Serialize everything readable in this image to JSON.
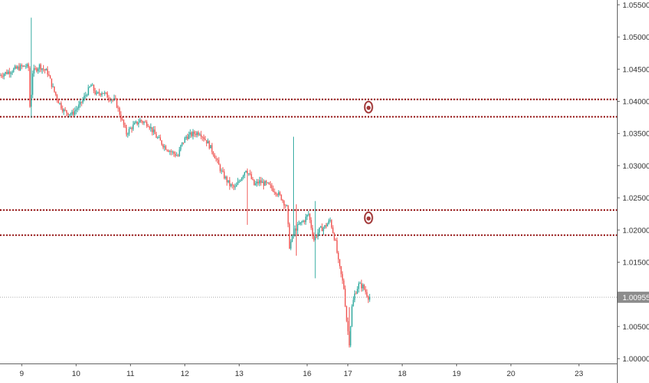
{
  "chart_data": {
    "type": "candlestick",
    "title": "",
    "xlabel": "",
    "ylabel": "",
    "ylim": [
      0.99925,
      1.05575
    ],
    "y_ticks": [
      "1.05500",
      "1.05000",
      "1.04500",
      "1.04000",
      "1.03500",
      "1.03000",
      "1.02500",
      "1.02000",
      "1.01500",
      "1.00500",
      "1.00000"
    ],
    "x_ticks": [
      {
        "label": "9",
        "x": 9.0
      },
      {
        "label": "10",
        "x": 10.0
      },
      {
        "label": "11",
        "x": 11.0
      },
      {
        "label": "12",
        "x": 12.0
      },
      {
        "label": "13",
        "x": 13.0
      },
      {
        "label": "16",
        "x": 14.25
      },
      {
        "label": "17",
        "x": 15.0
      },
      {
        "label": "18",
        "x": 16.0
      },
      {
        "label": "19",
        "x": 17.0
      },
      {
        "label": "20",
        "x": 18.0
      },
      {
        "label": "23",
        "x": 19.25
      }
    ],
    "xlim": [
      8.6,
      19.95
    ],
    "last_price": "1.00955",
    "horizontal_levels": [
      1.0403,
      1.0376,
      1.0231,
      1.0192
    ],
    "markers": [
      {
        "x": 15.38,
        "y": 1.0391,
        "icon": "target-circle-icon"
      },
      {
        "x": 15.38,
        "y": 1.0219,
        "icon": "target-circle-icon"
      }
    ],
    "colors": {
      "up": "#26a69a",
      "down": "#ef5350",
      "level_line": "#8b0000",
      "marker": "#a33b3b",
      "axis": "#555555",
      "price_tag_bg": "#8c8c8c",
      "last_price_line": "#999999"
    },
    "anchors": [
      [
        8.6,
        1.044
      ],
      [
        8.75,
        1.0445
      ],
      [
        8.9,
        1.045
      ],
      [
        9.0,
        1.0453
      ],
      [
        9.1,
        1.0455
      ],
      [
        9.15,
        1.0452
      ],
      [
        9.18,
        1.038
      ],
      [
        9.22,
        1.0445
      ],
      [
        9.35,
        1.0455
      ],
      [
        9.5,
        1.0445
      ],
      [
        9.6,
        1.042
      ],
      [
        9.7,
        1.04
      ],
      [
        9.8,
        1.0385
      ],
      [
        9.95,
        1.038
      ],
      [
        10.1,
        1.0395
      ],
      [
        10.2,
        1.041
      ],
      [
        10.3,
        1.0425
      ],
      [
        10.4,
        1.041
      ],
      [
        10.5,
        1.0415
      ],
      [
        10.6,
        1.0408
      ],
      [
        10.75,
        1.04
      ],
      [
        10.85,
        1.0375
      ],
      [
        10.95,
        1.035
      ],
      [
        11.05,
        1.036
      ],
      [
        11.2,
        1.037
      ],
      [
        11.35,
        1.0365
      ],
      [
        11.5,
        1.0345
      ],
      [
        11.65,
        1.033
      ],
      [
        11.8,
        1.032
      ],
      [
        11.9,
        1.0315
      ],
      [
        11.95,
        1.033
      ],
      [
        12.05,
        1.0345
      ],
      [
        12.2,
        1.035
      ],
      [
        12.3,
        1.0352
      ],
      [
        12.45,
        1.0335
      ],
      [
        12.55,
        1.032
      ],
      [
        12.7,
        1.029
      ],
      [
        12.85,
        1.027
      ],
      [
        12.95,
        1.0265
      ],
      [
        13.05,
        1.028
      ],
      [
        13.15,
        1.0295
      ],
      [
        13.22,
        1.0285
      ],
      [
        13.3,
        1.027
      ],
      [
        13.4,
        1.0275
      ],
      [
        13.55,
        1.027
      ],
      [
        13.7,
        1.026
      ],
      [
        13.8,
        1.025
      ],
      [
        13.9,
        1.0235
      ],
      [
        13.95,
        1.0175
      ],
      [
        14.05,
        1.02
      ],
      [
        14.15,
        1.021
      ],
      [
        14.22,
        1.0215
      ],
      [
        14.3,
        1.0225
      ],
      [
        14.4,
        1.0185
      ],
      [
        14.5,
        1.02
      ],
      [
        14.6,
        1.0205
      ],
      [
        14.7,
        1.0215
      ],
      [
        14.8,
        1.018
      ],
      [
        14.85,
        1.015
      ],
      [
        14.95,
        1.011
      ],
      [
        15.0,
        1.006
      ],
      [
        15.05,
        1.0025
      ],
      [
        15.1,
        1.008
      ],
      [
        15.15,
        1.01
      ],
      [
        15.22,
        1.0115
      ],
      [
        15.3,
        1.0112
      ],
      [
        15.4,
        1.0096
      ]
    ],
    "spikes": [
      {
        "x": 9.18,
        "high": 1.053,
        "low": 1.0374
      },
      {
        "x": 14.0,
        "high": 1.0345,
        "low": 1.0205
      },
      {
        "x": 14.06,
        "high": 1.024,
        "low": 1.016
      },
      {
        "x": 14.4,
        "high": 1.0245,
        "low": 1.0125
      },
      {
        "x": 13.15,
        "high": 1.029,
        "low": 1.0208
      },
      {
        "x": 15.03,
        "high": 1.008,
        "low": 1.002
      }
    ]
  }
}
